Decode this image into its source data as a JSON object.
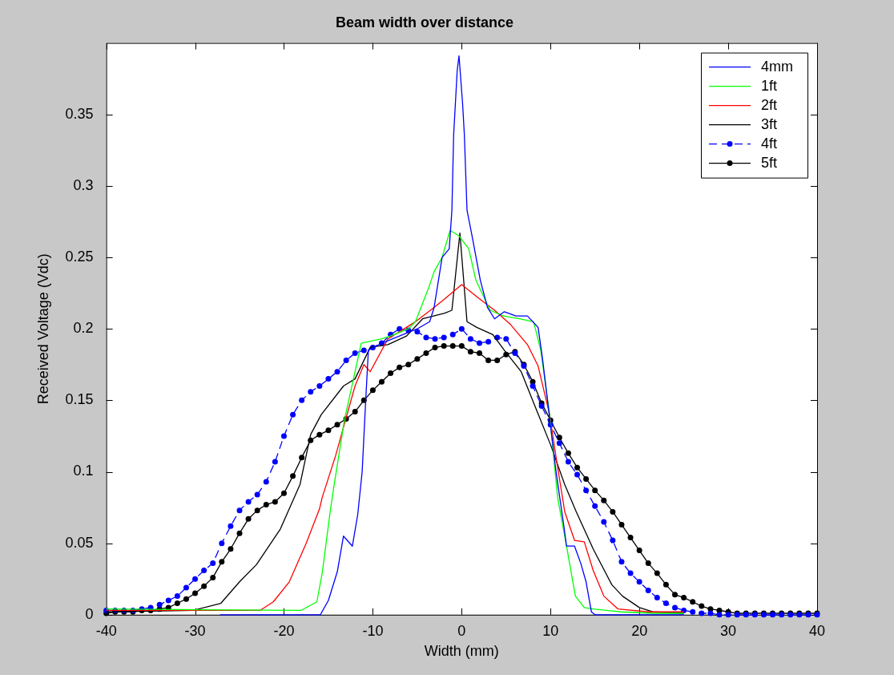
{
  "chart_data": {
    "type": "line",
    "title": "Beam width over distance",
    "xlabel": "Width (mm)",
    "ylabel": "Received Voltage (Vdc)",
    "xlim": [
      -40,
      40
    ],
    "xticks": [
      -40,
      -30,
      -20,
      -10,
      0,
      10,
      20,
      30,
      40
    ],
    "ylim": [
      0,
      0.4
    ],
    "yticks": [
      0,
      0.05,
      0.1,
      0.15,
      0.2,
      0.25,
      0.3,
      0.35
    ],
    "grid": false,
    "legend": "top right",
    "series": [
      {
        "name": "4mm",
        "color": "#0000ff",
        "marker": "none",
        "line_style": "solid",
        "x": [
          -27.2,
          -15.9,
          -15,
          -14,
          -13.3,
          -12.3,
          -11.7,
          -11.2,
          -10.8,
          -10.5,
          -9,
          -7,
          -5,
          -3.6,
          -3.1,
          -2.2,
          -1.4,
          -1.1,
          -0.9,
          -0.5,
          -0.3,
          0.1,
          0.3,
          0.6,
          1.2,
          2.1,
          2.9,
          3.7,
          4.8,
          6.1,
          7.4,
          8.6,
          9.1,
          10.6,
          11.5,
          11.8,
          12.7,
          13.4,
          14,
          14.6,
          15,
          25
        ],
        "values": [
          0,
          0,
          0.01,
          0.03,
          0.055,
          0.048,
          0.07,
          0.1,
          0.15,
          0.185,
          0.19,
          0.195,
          0.2,
          0.205,
          0.215,
          0.25,
          0.256,
          0.283,
          0.336,
          0.381,
          0.391,
          0.358,
          0.336,
          0.283,
          0.264,
          0.234,
          0.215,
          0.207,
          0.212,
          0.209,
          0.209,
          0.201,
          0.179,
          0.101,
          0.062,
          0.048,
          0.048,
          0.036,
          0.023,
          0.002,
          0,
          0
        ]
      },
      {
        "name": "1ft",
        "color": "#00ff00",
        "marker": "none",
        "line_style": "solid",
        "x": [
          -40,
          -18.1,
          -16.3,
          -15.7,
          -14.8,
          -14.4,
          -13.2,
          -12,
          -11.3,
          -9,
          -8,
          -6,
          -5.2,
          -3.7,
          -3.1,
          -2.2,
          -1.3,
          -0.3,
          0.8,
          1.6,
          3.2,
          4.7,
          6.5,
          8.1,
          8.9,
          9.9,
          10.8,
          11.8,
          12.8,
          13.8,
          14.8,
          17.9,
          21.6,
          25
        ],
        "values": [
          0.004,
          0.003,
          0.009,
          0.029,
          0.072,
          0.089,
          0.136,
          0.17,
          0.19,
          0.193,
          0.195,
          0.2,
          0.205,
          0.229,
          0.24,
          0.25,
          0.269,
          0.265,
          0.256,
          0.234,
          0.213,
          0.209,
          0.207,
          0.205,
          0.185,
          0.14,
          0.082,
          0.048,
          0.013,
          0.005,
          0.004,
          0.002,
          0.001,
          0.001
        ]
      },
      {
        "name": "2ft",
        "color": "#ff0000",
        "marker": "none",
        "line_style": "solid",
        "x": [
          -40,
          -22.7,
          -21.2,
          -19.4,
          -17.5,
          -16,
          -15.7,
          -14.2,
          -12.9,
          -12,
          -11,
          -10.3,
          -8.3,
          -6.5,
          -5.2,
          -3.1,
          -1.9,
          0,
          1.8,
          3.7,
          5.5,
          7.4,
          8.6,
          9.9,
          10.7,
          11.6,
          12.7,
          13.8,
          14.8,
          16,
          17.6,
          21,
          25
        ],
        "values": [
          0.003,
          0.003,
          0.009,
          0.023,
          0.05,
          0.074,
          0.082,
          0.111,
          0.14,
          0.16,
          0.175,
          0.17,
          0.193,
          0.2,
          0.205,
          0.215,
          0.221,
          0.231,
          0.222,
          0.213,
          0.203,
          0.189,
          0.174,
          0.14,
          0.107,
          0.072,
          0.052,
          0.051,
          0.031,
          0.013,
          0.004,
          0.002,
          0.002
        ]
      },
      {
        "name": "3ft",
        "color": "#000000",
        "marker": "none",
        "line_style": "solid",
        "x": [
          -40,
          -30.2,
          -27.1,
          -25,
          -23.1,
          -20.4,
          -18.2,
          -17,
          -15.8,
          -13.3,
          -12,
          -10.3,
          -8.3,
          -6.2,
          -4.4,
          -1.9,
          -1.1,
          -0.2,
          0.6,
          1.7,
          3.5,
          4.8,
          6.7,
          8.5,
          10,
          11.6,
          12.9,
          14.8,
          16.9,
          18.1,
          20,
          21.5,
          25
        ],
        "values": [
          0.002,
          0.003,
          0.008,
          0.023,
          0.035,
          0.06,
          0.091,
          0.126,
          0.14,
          0.16,
          0.165,
          0.187,
          0.189,
          0.195,
          0.207,
          0.211,
          0.213,
          0.267,
          0.205,
          0.201,
          0.196,
          0.185,
          0.17,
          0.142,
          0.119,
          0.091,
          0.072,
          0.046,
          0.021,
          0.013,
          0.005,
          0.002,
          0.001
        ]
      },
      {
        "name": "4ft",
        "color": "#0000ff",
        "marker": "circle",
        "line_style": "dashed",
        "x": [
          -40,
          -39,
          -38,
          -37,
          -36,
          -35,
          -34,
          -33,
          -32,
          -31,
          -30,
          -29,
          -28,
          -27,
          -26,
          -25,
          -24,
          -23,
          -22,
          -21,
          -20,
          -19,
          -18,
          -17,
          -16,
          -15,
          -14,
          -13,
          -12,
          -11,
          -10,
          -9,
          -8,
          -7,
          -6,
          -5,
          -4,
          -3,
          -2,
          -1,
          0,
          1,
          2,
          3,
          4,
          5,
          6,
          7,
          8,
          9,
          10,
          11,
          12,
          13,
          14,
          15,
          16,
          17,
          18,
          19,
          20,
          21,
          22,
          23,
          24,
          25,
          26,
          27,
          28,
          29,
          30,
          31,
          32,
          33,
          34,
          35,
          36,
          37,
          38,
          39,
          40
        ],
        "values": [
          0.003,
          0.003,
          0.003,
          0.003,
          0.004,
          0.005,
          0.007,
          0.01,
          0.013,
          0.019,
          0.025,
          0.031,
          0.036,
          0.05,
          0.062,
          0.073,
          0.079,
          0.084,
          0.093,
          0.107,
          0.125,
          0.14,
          0.15,
          0.156,
          0.16,
          0.165,
          0.17,
          0.178,
          0.183,
          0.185,
          0.187,
          0.19,
          0.196,
          0.2,
          0.199,
          0.198,
          0.194,
          0.193,
          0.194,
          0.196,
          0.2,
          0.193,
          0.19,
          0.191,
          0.194,
          0.193,
          0.183,
          0.174,
          0.16,
          0.146,
          0.133,
          0.12,
          0.107,
          0.098,
          0.087,
          0.076,
          0.065,
          0.052,
          0.037,
          0.029,
          0.023,
          0.017,
          0.012,
          0.008,
          0.005,
          0.003,
          0.002,
          0.001,
          0.001,
          0,
          0,
          0,
          0,
          0,
          0,
          0,
          0,
          0,
          0,
          0,
          0
        ]
      },
      {
        "name": "5ft",
        "color": "#000000",
        "marker": "circle",
        "line_style": "solid",
        "x": [
          -40,
          -39,
          -38,
          -37,
          -36,
          -35,
          -34,
          -33,
          -32,
          -31,
          -30,
          -29,
          -28,
          -27,
          -26,
          -25,
          -24,
          -23,
          -22,
          -21,
          -20,
          -19,
          -18,
          -17,
          -16,
          -15,
          -14,
          -13,
          -12,
          -11,
          -10,
          -9,
          -8,
          -7,
          -6,
          -5,
          -4,
          -3,
          -2,
          -1,
          0,
          1,
          2,
          3,
          4,
          5,
          6,
          7,
          8,
          9,
          10,
          11,
          12,
          13,
          14,
          15,
          16,
          17,
          18,
          19,
          20,
          21,
          22,
          23,
          24,
          25,
          26,
          27,
          28,
          29,
          30,
          31,
          32,
          33,
          34,
          35,
          36,
          37,
          38,
          39,
          40
        ],
        "values": [
          0.001,
          0.002,
          0.002,
          0.002,
          0.003,
          0.003,
          0.004,
          0.005,
          0.008,
          0.011,
          0.015,
          0.02,
          0.026,
          0.037,
          0.046,
          0.057,
          0.067,
          0.073,
          0.077,
          0.079,
          0.085,
          0.097,
          0.11,
          0.122,
          0.126,
          0.129,
          0.133,
          0.137,
          0.142,
          0.15,
          0.157,
          0.163,
          0.169,
          0.173,
          0.175,
          0.179,
          0.183,
          0.187,
          0.188,
          0.188,
          0.188,
          0.184,
          0.183,
          0.178,
          0.178,
          0.182,
          0.184,
          0.175,
          0.163,
          0.148,
          0.136,
          0.124,
          0.113,
          0.103,
          0.095,
          0.087,
          0.08,
          0.072,
          0.063,
          0.054,
          0.045,
          0.036,
          0.029,
          0.021,
          0.014,
          0.012,
          0.009,
          0.006,
          0.004,
          0.003,
          0.002,
          0.001,
          0.001,
          0.001,
          0.001,
          0.001,
          0.001,
          0.001,
          0.001,
          0.001,
          0.001
        ]
      }
    ]
  }
}
